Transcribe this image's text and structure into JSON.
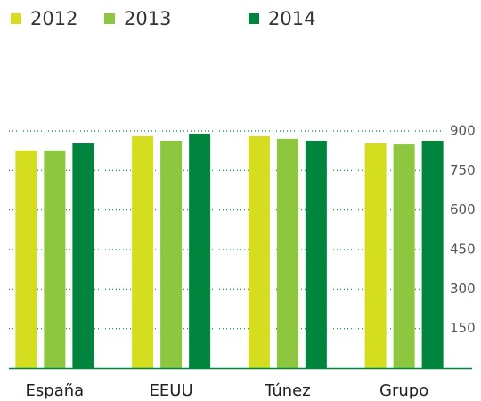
{
  "chart_data": {
    "type": "bar",
    "categories": [
      "España",
      "EEUU",
      "Túnez",
      "Grupo"
    ],
    "series": [
      {
        "name": "2012",
        "color": "#d4de1e",
        "values": [
          826,
          880,
          880,
          853
        ]
      },
      {
        "name": "2013",
        "color": "#8dc63f",
        "values": [
          826,
          863,
          870,
          849
        ]
      },
      {
        "name": "2014",
        "color": "#00853e",
        "values": [
          853,
          890,
          863,
          863
        ]
      }
    ],
    "ylim": [
      0,
      900
    ],
    "yticks": [
      150,
      300,
      450,
      600,
      750,
      900
    ],
    "grid": true
  }
}
